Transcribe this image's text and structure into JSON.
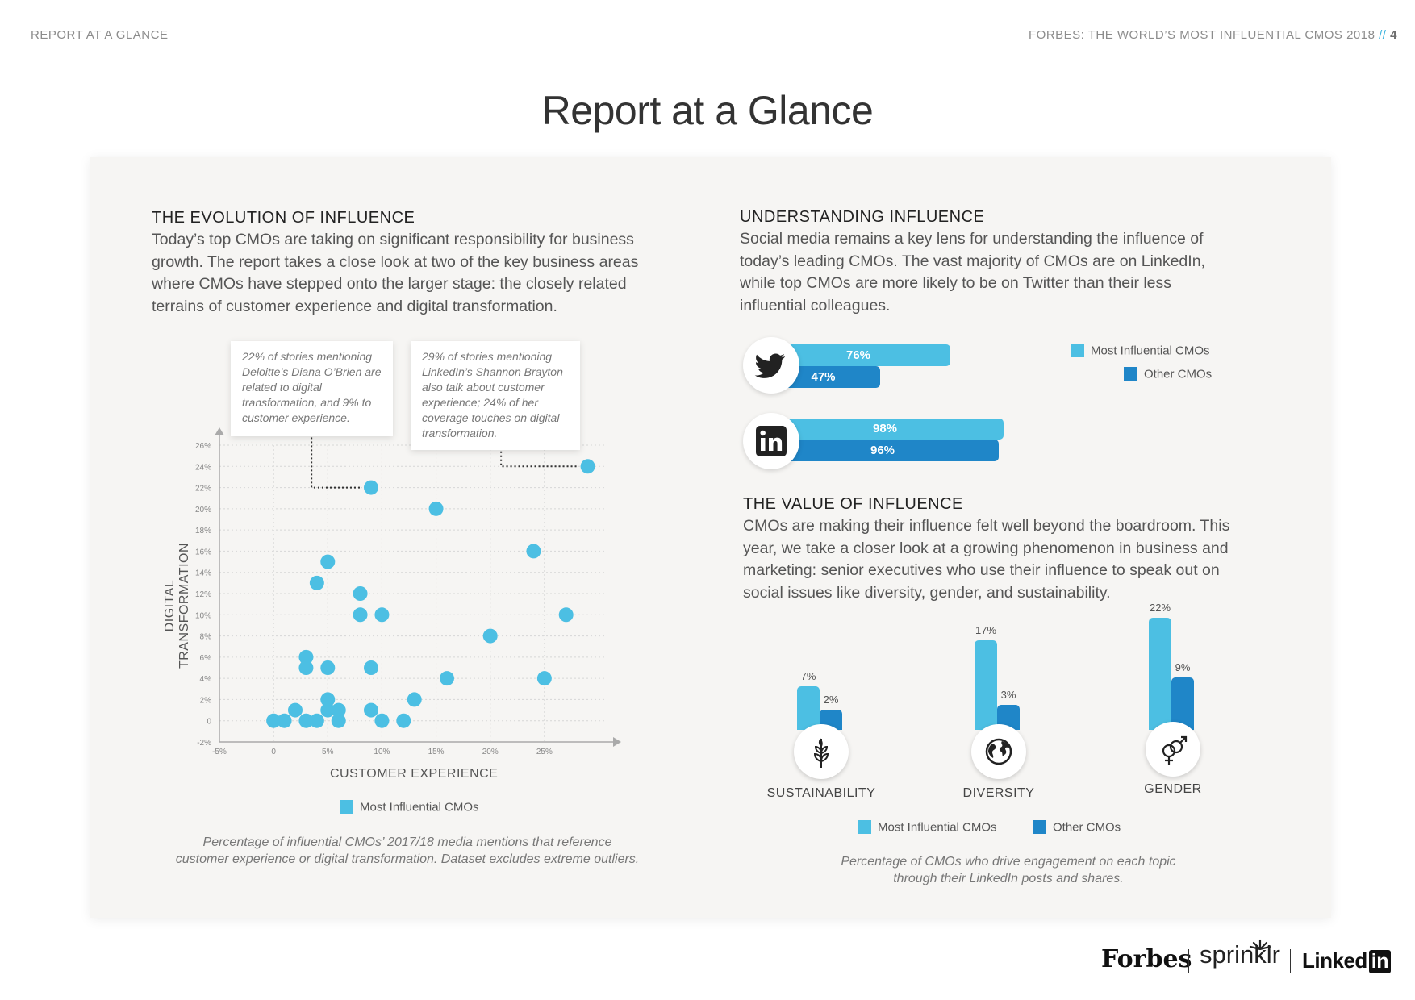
{
  "header": {
    "section": "REPORT AT A GLANCE",
    "publication": "FORBES: THE WORLD’S MOST INFLUENTIAL CMOS 2018",
    "separator": "//",
    "page_number": "4"
  },
  "title": "Report at a Glance",
  "evolution": {
    "title": "THE EVOLUTION OF INFLUENCE",
    "body": "Today’s top CMOs are taking on significant responsibility for business growth. The report takes a close look at two of the key business areas where CMOs have stepped onto the larger stage: the closely related terrains of customer experience and digital transformation.",
    "callout_1": "22% of stories mentioning Deloitte’s Diana O’Brien are related to digital transformation, and 9% to customer experience.",
    "callout_2": "29% of stories mentioning LinkedIn’s Shannon Brayton also talk about customer experience; 24% of her coverage touches on digital transformation.",
    "legend": "Most Influential CMOs",
    "caption_1": "Percentage of influential CMOs’ 2017/18 media mentions that reference",
    "caption_2": "customer experience or digital transformation. Dataset excludes extreme outliers."
  },
  "understanding": {
    "title": "UNDERSTANDING INFLUENCE",
    "body": "Social media remains a key lens for understanding the influence of today’s leading CMOs. The vast majority of CMOs are on LinkedIn, while top CMOs are more likely to be on Twitter than their less influential colleagues.",
    "legend_most": "Most Influential CMOs",
    "legend_other": "Other CMOs"
  },
  "value": {
    "title": "THE VALUE OF INFLUENCE",
    "body": "CMOs are making their influence felt well beyond the boardroom. This year, we take a closer look at a growing phenomenon in business and marketing: senior executives who use their influence to speak out on social issues like diversity, gender, and sustainability.",
    "legend_most": "Most Influential CMOs",
    "legend_other": "Other CMOs",
    "caption_1": "Percentage of CMOs who drive engagement on each topic",
    "caption_2": "through their LinkedIn posts and shares."
  },
  "colors": {
    "most": "#4cbfe3",
    "other": "#1f86c8",
    "card": "#f6f5f3"
  },
  "logos": {
    "forbes": "Forbes",
    "sprinklr": "sprinklr",
    "linkedin": "Linked",
    "linkedin_in": "in"
  },
  "chart_data": [
    {
      "type": "scatter",
      "xlabel": "CUSTOMER EXPERIENCE",
      "ylabel": "DIGITAL TRANSFORMATION",
      "xlim": [
        -5,
        30
      ],
      "ylim": [
        -2,
        26
      ],
      "x_ticks": [
        "-5%",
        "0",
        "5%",
        "10%",
        "15%",
        "20%",
        "25%"
      ],
      "x_tick_values": [
        -5,
        0,
        5,
        10,
        15,
        20,
        25
      ],
      "y_ticks": [
        "-2%",
        "0",
        "2%",
        "4%",
        "6%",
        "8%",
        "10%",
        "12%",
        "14%",
        "16%",
        "18%",
        "20%",
        "22%",
        "24%",
        "26%"
      ],
      "y_tick_values": [
        -2,
        0,
        2,
        4,
        6,
        8,
        10,
        12,
        14,
        16,
        18,
        20,
        22,
        24,
        26
      ],
      "series": [
        {
          "name": "Most Influential CMOs",
          "points": [
            [
              9,
              22
            ],
            [
              29,
              24
            ],
            [
              15,
              20
            ],
            [
              24,
              16
            ],
            [
              5,
              15
            ],
            [
              4,
              13
            ],
            [
              8,
              12
            ],
            [
              8,
              10
            ],
            [
              10,
              10
            ],
            [
              27,
              10
            ],
            [
              20,
              8
            ],
            [
              3,
              6
            ],
            [
              3,
              5
            ],
            [
              5,
              5
            ],
            [
              9,
              5
            ],
            [
              16,
              4
            ],
            [
              25,
              4
            ],
            [
              5,
              2
            ],
            [
              13,
              2
            ],
            [
              2,
              1
            ],
            [
              5,
              1
            ],
            [
              6,
              1
            ],
            [
              9,
              1
            ],
            [
              0,
              0
            ],
            [
              1,
              0
            ],
            [
              3,
              0
            ],
            [
              4,
              0
            ],
            [
              6,
              0
            ],
            [
              10,
              0
            ],
            [
              12,
              0
            ]
          ]
        }
      ]
    },
    {
      "type": "bar",
      "orientation": "horizontal",
      "categories": [
        "Twitter",
        "LinkedIn"
      ],
      "series": [
        {
          "name": "Most Influential CMOs",
          "values": [
            76,
            98
          ],
          "labels": [
            "76%",
            "98%"
          ]
        },
        {
          "name": "Other CMOs",
          "values": [
            47,
            96
          ],
          "labels": [
            "47%",
            "96%"
          ]
        }
      ]
    },
    {
      "type": "bar",
      "categories": [
        "SUSTAINABILITY",
        "DIVERSITY",
        "GENDER"
      ],
      "series": [
        {
          "name": "Most Influential CMOs",
          "values": [
            7,
            17,
            22
          ],
          "labels": [
            "7%",
            "17%",
            "22%"
          ]
        },
        {
          "name": "Other CMOs",
          "values": [
            2,
            3,
            9
          ],
          "labels": [
            "2%",
            "3%",
            "9%"
          ]
        }
      ]
    }
  ]
}
